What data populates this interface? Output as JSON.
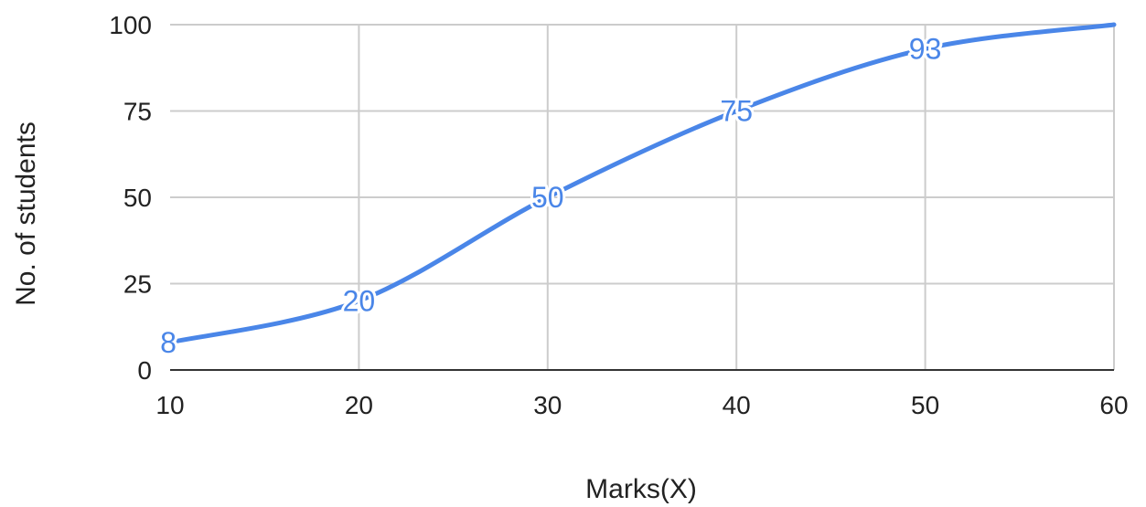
{
  "chart_data": {
    "type": "line",
    "title": "",
    "xlabel": "Marks(X)",
    "ylabel": "No. of students",
    "x": [
      10,
      20,
      30,
      40,
      50,
      60
    ],
    "series": [
      {
        "values": [
          8,
          20,
          50,
          75,
          93,
          100
        ]
      }
    ],
    "data_labels": [
      "8",
      "20",
      "50",
      "75",
      "93",
      ""
    ],
    "xlim": [
      10,
      60
    ],
    "ylim": [
      0,
      100
    ],
    "xticks": [
      10,
      20,
      30,
      40,
      50,
      60
    ],
    "yticks": [
      0,
      25,
      50,
      75,
      100
    ],
    "smooth": true,
    "grid": true,
    "legend": "none",
    "colors": {
      "line": "#4a86e8",
      "grid": "#cccccc",
      "axis": "#333333",
      "label": "#4a86e8"
    }
  }
}
